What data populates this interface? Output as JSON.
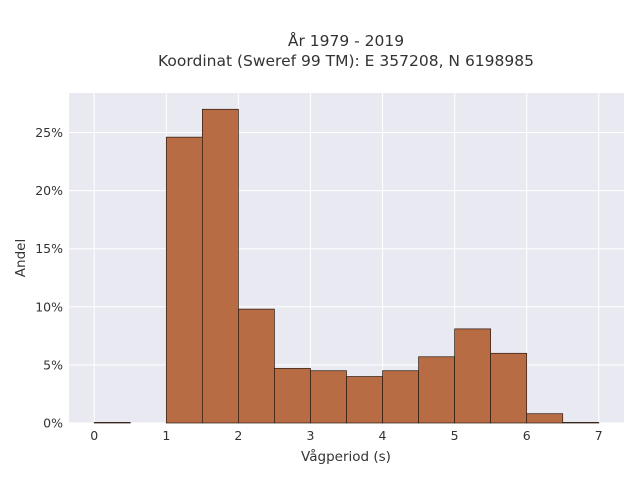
{
  "chart_data": {
    "type": "bar",
    "title_line1": "År 1979 - 2019",
    "title_line2": "Koordinat (Sweref 99 TM): E 357208, N 6198985",
    "xlabel": "Vågperiod (s)",
    "ylabel": "Andel",
    "bin_edges": [
      0,
      0.5,
      1,
      1.5,
      2,
      2.5,
      3,
      3.5,
      4,
      4.5,
      5,
      5.5,
      6,
      6.5,
      7
    ],
    "values": [
      0.05,
      0,
      24.6,
      27.0,
      9.8,
      4.7,
      4.5,
      4.0,
      4.5,
      5.7,
      8.1,
      6.0,
      0.8,
      0.05
    ],
    "xlim": [
      -0.35,
      7.35
    ],
    "ylim": [
      0,
      28.4
    ],
    "x_ticks": [
      0,
      1,
      2,
      3,
      4,
      5,
      6,
      7
    ],
    "x_tick_labels": [
      "0",
      "1",
      "2",
      "3",
      "4",
      "5",
      "6",
      "7"
    ],
    "y_ticks": [
      0,
      5,
      10,
      15,
      20,
      25
    ],
    "y_tick_labels": [
      "0%",
      "5%",
      "10%",
      "15%",
      "20%",
      "25%"
    ],
    "grid": true,
    "colors": {
      "bar_fill": "#b5653a",
      "bar_edge": "#2a1a10",
      "plot_bg": "#e9e9f1",
      "grid": "#ffffff"
    }
  }
}
